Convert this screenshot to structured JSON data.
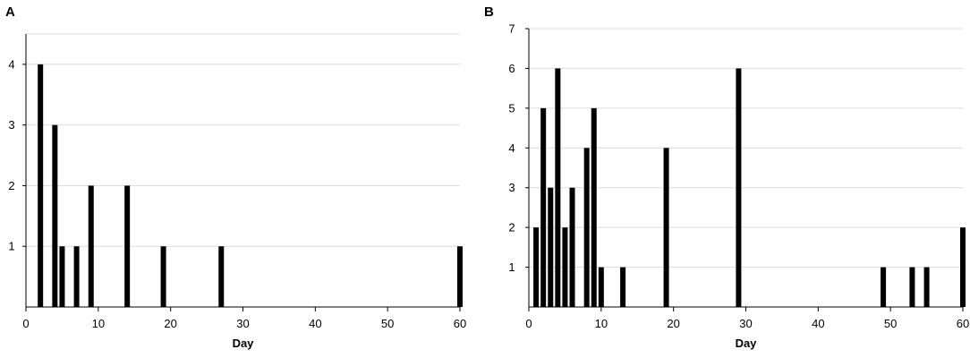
{
  "chart_data": [
    {
      "panel": "A",
      "type": "bar",
      "xlabel": "Day",
      "ylabel": "",
      "xlim": [
        0,
        60
      ],
      "ylim": [
        0,
        4.5
      ],
      "x_ticks": [
        0,
        10,
        20,
        30,
        40,
        50,
        60
      ],
      "y_ticks": [
        1,
        2,
        3,
        4
      ],
      "grid": true,
      "x": [
        2,
        4,
        5,
        7,
        9,
        14,
        19,
        27,
        60
      ],
      "values": [
        4,
        3,
        1,
        1,
        2,
        2,
        1,
        1,
        1
      ]
    },
    {
      "panel": "B",
      "type": "bar",
      "xlabel": "Day",
      "ylabel": "",
      "xlim": [
        0,
        60
      ],
      "ylim": [
        0,
        7
      ],
      "x_ticks": [
        0,
        10,
        20,
        30,
        40,
        50,
        60
      ],
      "y_ticks": [
        1,
        2,
        3,
        4,
        5,
        6,
        7
      ],
      "grid": true,
      "x": [
        1,
        2,
        3,
        4,
        5,
        6,
        8,
        9,
        10,
        13,
        19,
        29,
        49,
        53,
        55,
        60
      ],
      "values": [
        2,
        5,
        3,
        6,
        2,
        3,
        4,
        5,
        1,
        1,
        4,
        6,
        1,
        1,
        1,
        2
      ]
    }
  ]
}
